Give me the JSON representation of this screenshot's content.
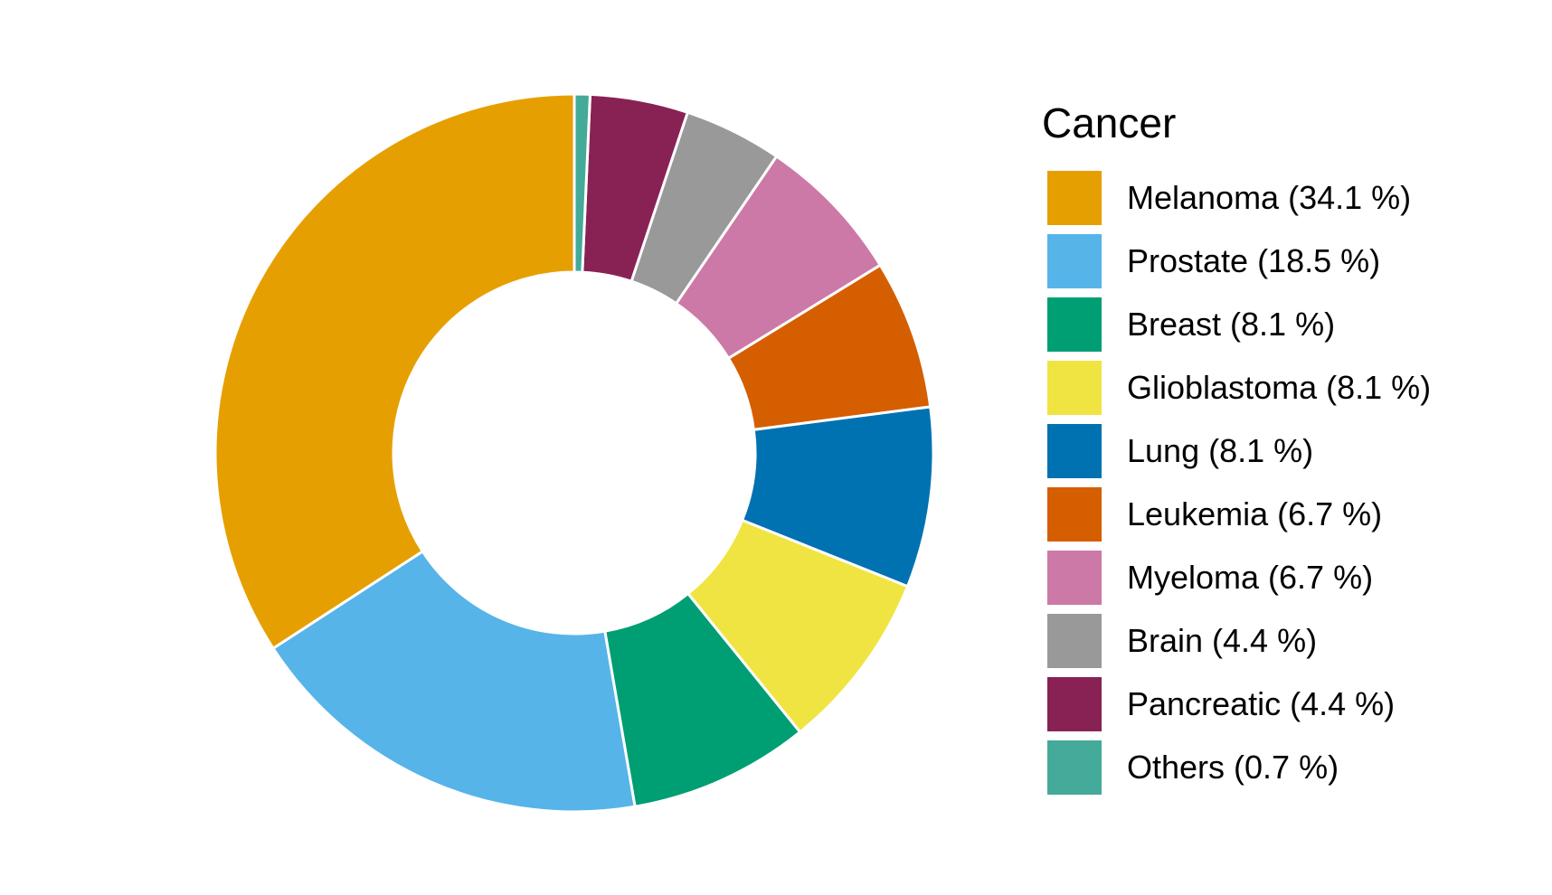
{
  "chart_data": {
    "type": "pie",
    "variant": "donut",
    "legend_title": "Cancer",
    "legend_position": "right",
    "slices": [
      {
        "label": "Melanoma (34.1 %)",
        "value": 34.1,
        "color": "#E69F00"
      },
      {
        "label": "Prostate (18.5 %)",
        "value": 18.5,
        "color": "#56B4E9"
      },
      {
        "label": "Breast (8.1 %)",
        "value": 8.1,
        "color": "#009E73"
      },
      {
        "label": "Glioblastoma (8.1 %)",
        "value": 8.1,
        "color": "#F0E442"
      },
      {
        "label": "Lung (8.1 %)",
        "value": 8.1,
        "color": "#0072B2"
      },
      {
        "label": "Leukemia (6.7 %)",
        "value": 6.7,
        "color": "#D55E00"
      },
      {
        "label": "Myeloma (6.7 %)",
        "value": 6.7,
        "color": "#CC79A7"
      },
      {
        "label": "Brain (4.4 %)",
        "value": 4.4,
        "color": "#999999"
      },
      {
        "label": "Pancreatic (4.4 %)",
        "value": 4.4,
        "color": "#882255"
      },
      {
        "label": "Others (0.7 %)",
        "value": 0.7,
        "color": "#44AA99"
      }
    ]
  }
}
